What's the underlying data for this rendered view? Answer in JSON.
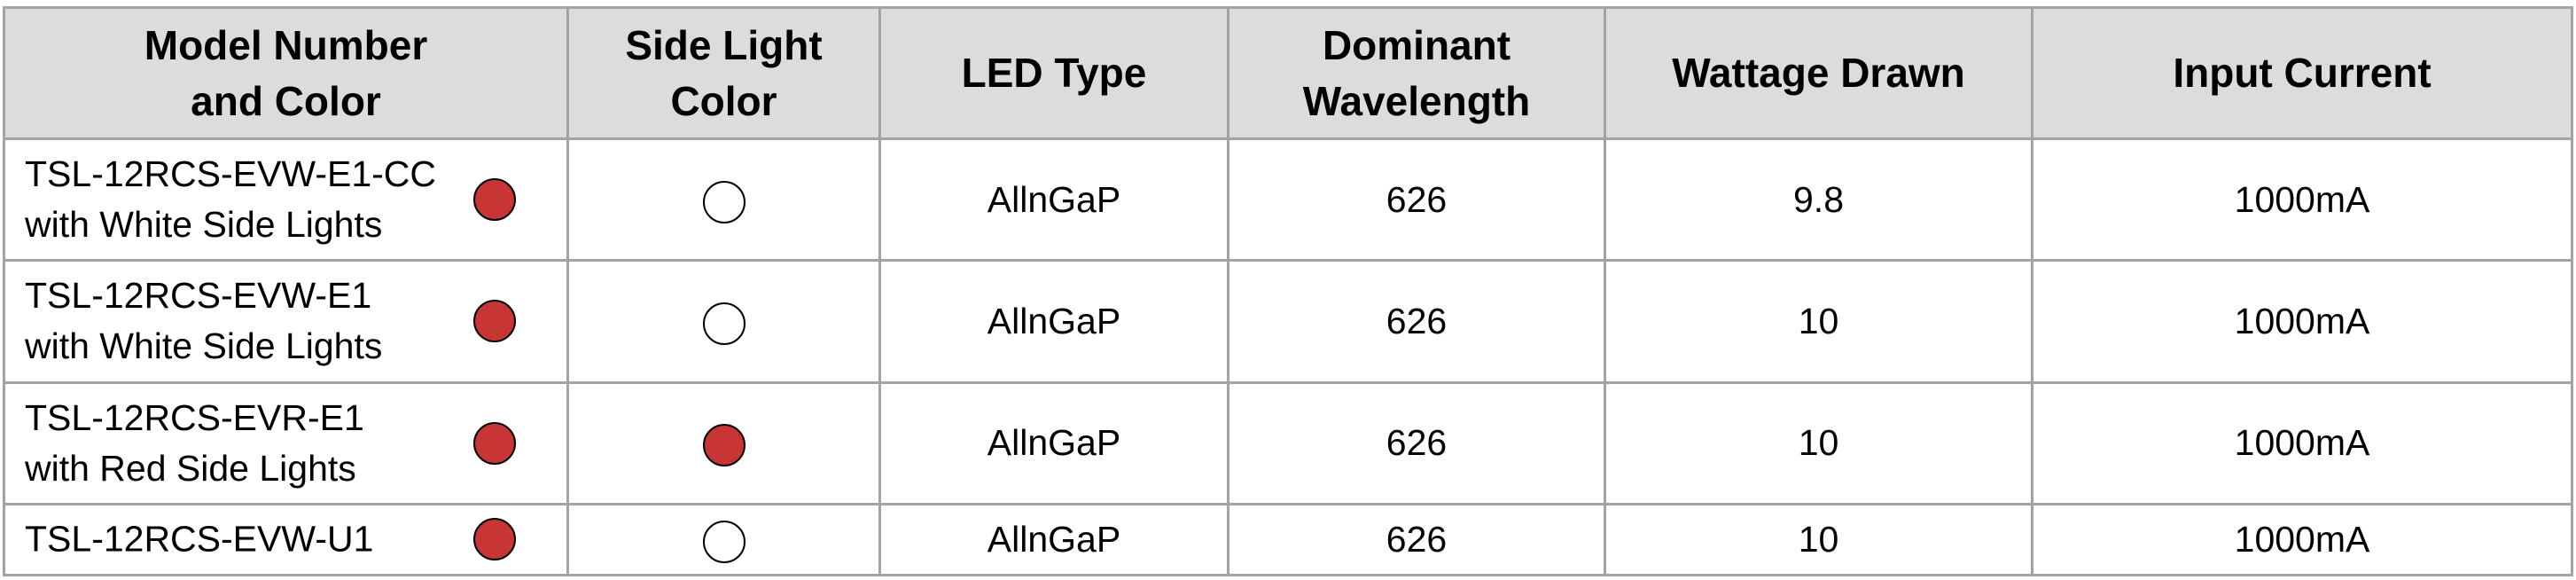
{
  "colors": {
    "red": "#c73535",
    "white": "#ffffff",
    "header_bg": "#dcdcdc",
    "border": "#a3a3a3"
  },
  "headers": [
    "Model Number\nand Color",
    "Side Light\nColor",
    "LED Type",
    "Dominant\nWavelength",
    "Wattage Drawn",
    "Input Current"
  ],
  "rows": [
    {
      "model": "TSL-12RCS-EVW-E1-CC\nwith White Side Lights",
      "model_color": "red",
      "side_light_color": "white",
      "led_type": "AllnGaP",
      "wavelength": "626",
      "wattage": "9.8",
      "current": "1000mA"
    },
    {
      "model": "TSL-12RCS-EVW-E1\nwith White Side Lights",
      "model_color": "red",
      "side_light_color": "white",
      "led_type": "AllnGaP",
      "wavelength": "626",
      "wattage": "10",
      "current": "1000mA"
    },
    {
      "model": "TSL-12RCS-EVR-E1\nwith Red Side Lights",
      "model_color": "red",
      "side_light_color": "red",
      "led_type": "AllnGaP",
      "wavelength": "626",
      "wattage": "10",
      "current": "1000mA"
    },
    {
      "model": "TSL-12RCS-EVW-U1",
      "model_color": "red",
      "side_light_color": "white",
      "led_type": "AllnGaP",
      "wavelength": "626",
      "wattage": "10",
      "current": "1000mA"
    }
  ]
}
